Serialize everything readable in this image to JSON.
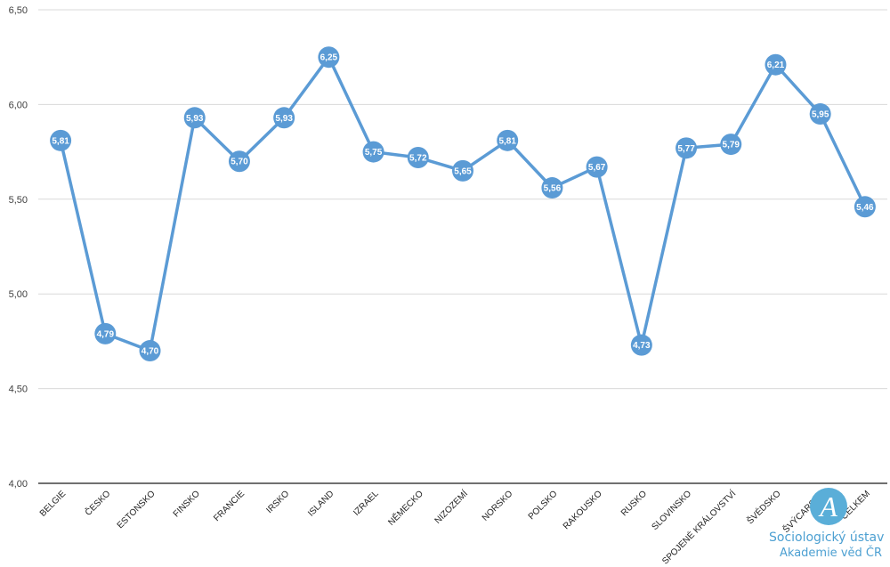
{
  "chart_data": {
    "type": "line",
    "categories": [
      "BELGIE",
      "ČESKO",
      "ESTONSKO",
      "FINSKO",
      "FRANCIE",
      "IRSKO",
      "ISLAND",
      "IZRAEL",
      "NĚMECKO",
      "NIZOZEMÍ",
      "NORSKO",
      "POLSKO",
      "RAKOUSKO",
      "RUSKO",
      "SLOVINSKO",
      "SPOJENÉ KRÁLOVSTVÍ",
      "ŠVÉDSKO",
      "ŠVÝCARSKO",
      "CELKEM"
    ],
    "series": [
      {
        "values": [
          5.81,
          4.79,
          4.7,
          5.93,
          5.7,
          5.93,
          6.25,
          5.75,
          5.72,
          5.65,
          5.81,
          5.56,
          5.67,
          4.73,
          5.77,
          5.79,
          6.21,
          5.95,
          5.46
        ],
        "data_labels": [
          "5,81",
          "4,79",
          "4,70",
          "5,93",
          "5,70",
          "5,93",
          "6,25",
          "5,75",
          "5,72",
          "5,65",
          "5,81",
          "5,56",
          "5,67",
          "4,73",
          "5,77",
          "5,79",
          "6,21",
          "5,95",
          "5,46"
        ],
        "color": "#5b9bd5"
      }
    ],
    "yticks": [
      4.0,
      4.5,
      5.0,
      5.5,
      6.0,
      6.5
    ],
    "ytick_labels": [
      "4,00",
      "4,50",
      "5,00",
      "5,50",
      "6,00",
      "6,50"
    ],
    "ylim": [
      4.0,
      6.5
    ],
    "grid": true,
    "title": "",
    "xlabel": "",
    "ylabel": ""
  },
  "logo": {
    "icon": "sociologicky-ustav-logo-icon",
    "line1": "Sociologický ústav",
    "line2": "Akademie věd ČR",
    "color": "#4da0d2"
  }
}
